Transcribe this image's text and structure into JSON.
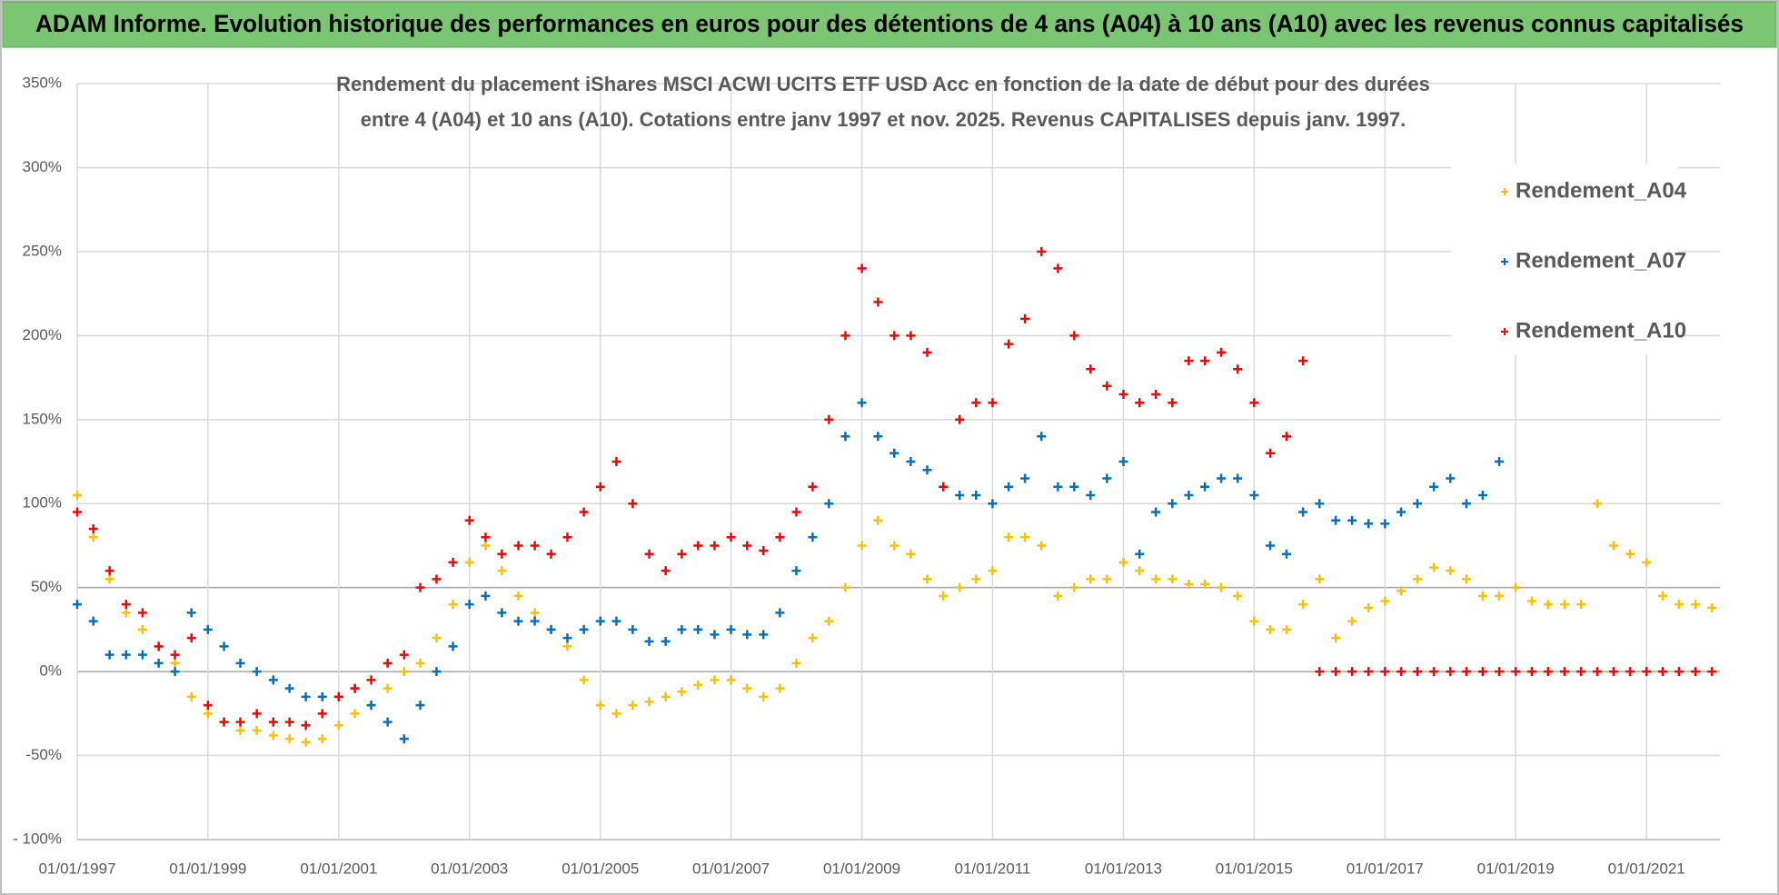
{
  "banner": "ADAM Informe. Evolution historique des performances en euros pour des détentions de 4 ans (A04) à 10 ans (A10) avec les revenus connus capitalisés",
  "chart_data": {
    "type": "scatter",
    "title": [
      "Rendement du placement iShares MSCI ACWI UCITS ETF USD Acc en fonction de la date de début pour des durées",
      "entre 4 (A04) et 10 ans (A10).  Cotations entre janv 1997 et nov. 2025. Revenus CAPITALISES depuis janv. 1997."
    ],
    "x": [
      "01/01/1997",
      "01/04/1997",
      "01/07/1997",
      "01/10/1997",
      "01/01/1998",
      "01/04/1998",
      "01/07/1998",
      "01/10/1998",
      "01/01/1999",
      "01/04/1999",
      "01/07/1999",
      "01/10/1999",
      "01/01/2000",
      "01/04/2000",
      "01/07/2000",
      "01/10/2000",
      "01/01/2001",
      "01/04/2001",
      "01/07/2001",
      "01/10/2001",
      "01/01/2002",
      "01/04/2002",
      "01/07/2002",
      "01/10/2002",
      "01/01/2003",
      "01/04/2003",
      "01/07/2003",
      "01/10/2003",
      "01/01/2004",
      "01/04/2004",
      "01/07/2004",
      "01/10/2004",
      "01/01/2005",
      "01/04/2005",
      "01/07/2005",
      "01/10/2005",
      "01/01/2006",
      "01/04/2006",
      "01/07/2006",
      "01/10/2006",
      "01/01/2007",
      "01/04/2007",
      "01/07/2007",
      "01/10/2007",
      "01/01/2008",
      "01/04/2008",
      "01/07/2008",
      "01/10/2008",
      "01/01/2009",
      "01/04/2009",
      "01/07/2009",
      "01/10/2009",
      "01/01/2010",
      "01/04/2010",
      "01/07/2010",
      "01/10/2010",
      "01/01/2011",
      "01/04/2011",
      "01/07/2011",
      "01/10/2011",
      "01/01/2012",
      "01/04/2012",
      "01/07/2012",
      "01/10/2012",
      "01/01/2013",
      "01/04/2013",
      "01/07/2013",
      "01/10/2013",
      "01/01/2014",
      "01/04/2014",
      "01/07/2014",
      "01/10/2014",
      "01/01/2015",
      "01/04/2015",
      "01/07/2015",
      "01/10/2015",
      "01/01/2016",
      "01/04/2016",
      "01/07/2016",
      "01/10/2016",
      "01/01/2017",
      "01/04/2017",
      "01/07/2017",
      "01/10/2017",
      "01/01/2018",
      "01/04/2018",
      "01/07/2018",
      "01/10/2018",
      "01/01/2019",
      "01/04/2019",
      "01/07/2019",
      "01/10/2019",
      "01/01/2020",
      "01/04/2020",
      "01/07/2020",
      "01/10/2020",
      "01/01/2021",
      "01/04/2021",
      "01/07/2021",
      "01/10/2021",
      "01/01/2022"
    ],
    "series": [
      {
        "name": "Rendement_A04",
        "color": "#ffc000",
        "values": [
          105,
          80,
          55,
          35,
          25,
          15,
          5,
          -15,
          -25,
          -30,
          -35,
          -35,
          -38,
          -40,
          -42,
          -40,
          -32,
          -25,
          -20,
          -10,
          0,
          5,
          20,
          40,
          65,
          75,
          60,
          45,
          35,
          25,
          15,
          -5,
          -20,
          -25,
          -20,
          -18,
          -15,
          -12,
          -8,
          -5,
          -5,
          -10,
          -15,
          -10,
          5,
          20,
          30,
          50,
          75,
          90,
          75,
          70,
          55,
          45,
          50,
          55,
          60,
          80,
          80,
          75,
          45,
          50,
          55,
          55,
          65,
          60,
          55,
          55,
          52,
          52,
          50,
          45,
          30,
          25,
          25,
          40,
          55,
          20,
          30,
          38,
          42,
          48,
          55,
          62,
          60,
          55,
          45,
          45,
          50,
          42,
          40,
          40,
          40,
          100,
          75,
          70,
          65,
          45,
          40,
          40,
          38
        ]
      },
      {
        "name": "Rendement_A07",
        "color": "#0070c0",
        "values": [
          40,
          30,
          10,
          10,
          10,
          5,
          0,
          35,
          25,
          15,
          5,
          0,
          -5,
          -10,
          -15,
          -15,
          -15,
          -10,
          -20,
          -30,
          -40,
          -20,
          0,
          15,
          40,
          45,
          35,
          30,
          30,
          25,
          20,
          25,
          30,
          30,
          25,
          18,
          18,
          25,
          25,
          22,
          25,
          22,
          22,
          35,
          60,
          80,
          100,
          140,
          160,
          140,
          130,
          125,
          120,
          110,
          105,
          105,
          100,
          110,
          115,
          140,
          110,
          110,
          105,
          115,
          125,
          70,
          95,
          100,
          105,
          110,
          115,
          115,
          105,
          75,
          70,
          95,
          100,
          90,
          90,
          88,
          88,
          95,
          100,
          110,
          115,
          100,
          105,
          125,
          null,
          null,
          null,
          null,
          null,
          null,
          null,
          null,
          null,
          null,
          null,
          null,
          null
        ]
      },
      {
        "name": "Rendement_A10",
        "color": "#ff0000",
        "values": [
          95,
          85,
          60,
          40,
          35,
          15,
          10,
          20,
          -20,
          -30,
          -30,
          -25,
          -30,
          -30,
          -32,
          -25,
          -15,
          -10,
          -5,
          5,
          10,
          50,
          55,
          65,
          90,
          80,
          70,
          75,
          75,
          70,
          80,
          95,
          110,
          125,
          100,
          70,
          60,
          70,
          75,
          75,
          80,
          75,
          72,
          80,
          95,
          110,
          150,
          200,
          240,
          220,
          200,
          200,
          190,
          110,
          150,
          160,
          160,
          195,
          210,
          250,
          240,
          200,
          180,
          170,
          165,
          160,
          165,
          160,
          185,
          185,
          190,
          180,
          160,
          130,
          140,
          185,
          0,
          0,
          0,
          0,
          0,
          0,
          0,
          0,
          0,
          0,
          0,
          0,
          0,
          0,
          0,
          0,
          0,
          0,
          0,
          0,
          0,
          0,
          0,
          0,
          0
        ]
      }
    ],
    "xlim": [
      "01/01/1997",
      "15/02/2022"
    ],
    "xticks": [
      "01/01/1997",
      "01/01/1999",
      "01/01/2001",
      "01/01/2003",
      "01/01/2005",
      "01/01/2007",
      "01/01/2009",
      "01/01/2011",
      "01/01/2013",
      "01/01/2015",
      "01/01/2017",
      "01/01/2019",
      "01/01/2021"
    ],
    "ylim": [
      -100,
      350
    ],
    "yticks": [
      {
        "value": -100,
        "label": "- 100%"
      },
      {
        "value": -50,
        "label": "-50%"
      },
      {
        "value": 0,
        "label": "0%"
      },
      {
        "value": 50,
        "label": "50%"
      },
      {
        "value": 100,
        "label": "100%"
      },
      {
        "value": 150,
        "label": "150%"
      },
      {
        "value": 200,
        "label": "200%"
      },
      {
        "value": 250,
        "label": "250%"
      },
      {
        "value": 300,
        "label": "300%"
      },
      {
        "value": 350,
        "label": "350%"
      }
    ],
    "grid": true,
    "legend": "upper right"
  }
}
